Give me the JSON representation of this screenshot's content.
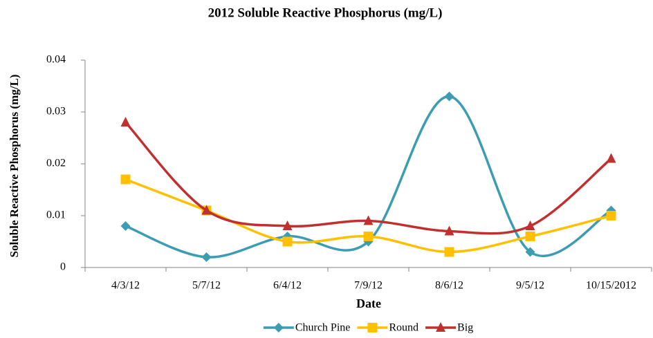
{
  "chart_data": {
    "type": "line",
    "smooth": true,
    "title": "2012 Soluble Reactive Phosphorus (mg/L)",
    "x_label": "Date",
    "y_label": "Soluble Reactive Phosphorus (mg/L)",
    "categories": [
      "4/3/12",
      "5/7/12",
      "6/4/12",
      "7/9/12",
      "8/6/12",
      "9/5/12",
      "10/15/2012"
    ],
    "series": [
      {
        "name": "Church Pine",
        "color": "#3b9cb2",
        "marker": "diamond",
        "values": [
          0.008,
          0.002,
          0.006,
          0.005,
          0.033,
          0.003,
          0.011
        ]
      },
      {
        "name": "Round",
        "color": "#ffc000",
        "marker": "square",
        "values": [
          0.017,
          0.011,
          0.005,
          0.006,
          0.003,
          0.006,
          0.01
        ]
      },
      {
        "name": "Big",
        "color": "#c0302f",
        "marker": "triangle",
        "values": [
          0.028,
          0.011,
          0.008,
          0.009,
          0.007,
          0.008,
          0.021
        ]
      }
    ],
    "ylim": [
      0,
      0.04
    ],
    "yticks": [
      0,
      0.01,
      0.02,
      0.03,
      0.04
    ],
    "grid": false,
    "legend": "bottom"
  }
}
